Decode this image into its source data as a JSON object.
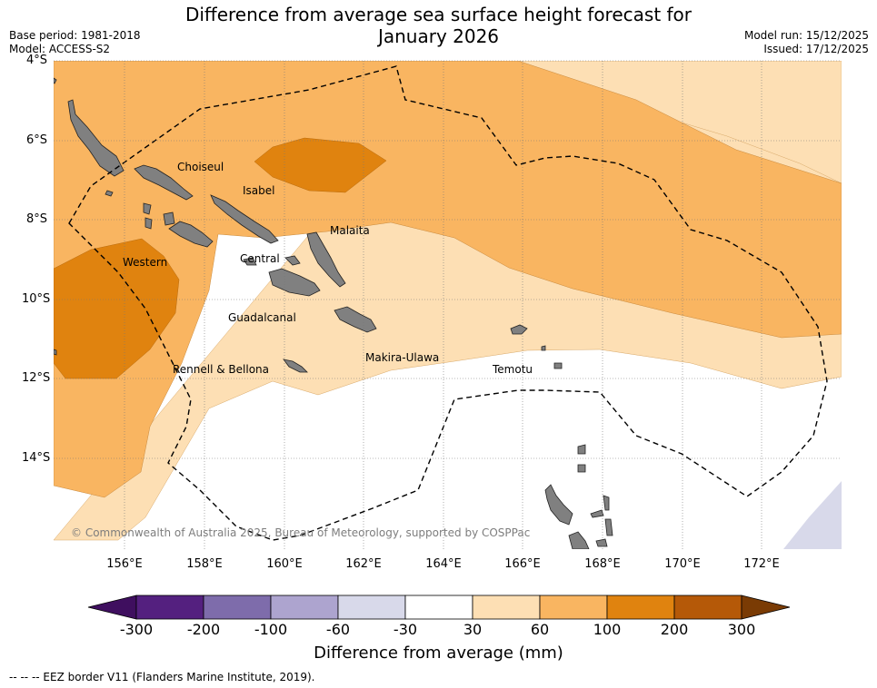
{
  "title_line1": "Difference from average sea surface height forecast for",
  "title_line2": "January 2026",
  "base_period": "Base period: 1981-2018",
  "model": "Model: ACCESS-S2",
  "model_run": "Model run: 15/12/2025",
  "issued": "Issued: 17/12/2025",
  "lat_labels": [
    "4°S",
    "6°S",
    "8°S",
    "10°S",
    "12°S",
    "14°S"
  ],
  "lon_labels": [
    "156°E",
    "158°E",
    "160°E",
    "162°E",
    "164°E",
    "166°E",
    "168°E",
    "170°E",
    "172°E"
  ],
  "regions": [
    "Choiseul",
    "Isabel",
    "Malaita",
    "Western",
    "Central",
    "Guadalcanal",
    "Makira-Ulawa",
    "Rennell & Bellona",
    "Temotu"
  ],
  "copyright": "© Commonwealth of Australia 2025, Bureau of Meteorology, supported by COSPPac",
  "colorbar": {
    "ticks": [
      "-300",
      "-200",
      "-100",
      "-60",
      "-30",
      "30",
      "60",
      "100",
      "200",
      "300"
    ],
    "colors": [
      "#3f0f5f",
      "#54207f",
      "#7e6cab",
      "#ada4cf",
      "#d8d9ea",
      "#ffffff",
      "#fddfb4",
      "#f9b561",
      "#e0830f",
      "#b55908",
      "#7a3b04"
    ],
    "label": "Difference from average (mm)"
  },
  "legend": "--  --  -- EEZ border V11 (Flanders Marine Institute, 2019).",
  "colors": {
    "land": "#808080",
    "eez": "#000000",
    "grid": "#777777"
  }
}
